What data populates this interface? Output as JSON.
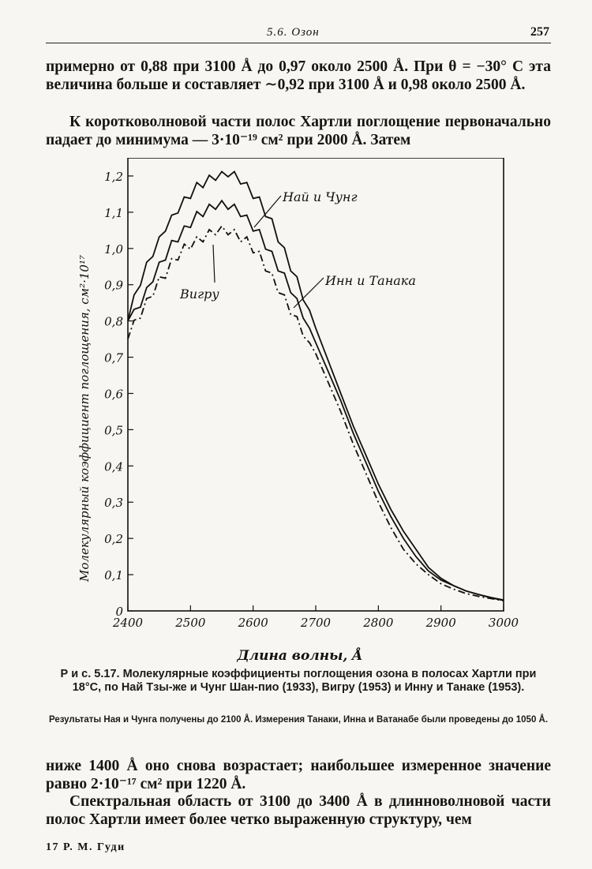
{
  "header": {
    "section": "5.6. Озон",
    "page_number": "257"
  },
  "paragraphs": {
    "p1": "примерно от 0,88 при 3100 Å до 0,97 около 2500 Å. При θ = −30° С эта величина больше и составляет ∼0,92 при 3100 Å и 0,98 около 2500 Å.",
    "p2": "К коротковолновой части полос Хартли поглощение первоначально падает до минимума — 3·10⁻¹⁹ см² при 2000 Å. Затем",
    "p3": "ниже 1400 Å оно снова возрастает; наибольшее измеренное значение равно 2·10⁻¹⁷ см² при 1220 Å.",
    "p4": "Спектральная область от 3100 до 3400 Å в длинноволновой части полос Хартли имеет более четко выраженную структуру, чем"
  },
  "chart_data": {
    "type": "line",
    "xlabel": "Длина волны, Å",
    "ylabel": "Молекулярный коэффициент поглощения, см²·10¹⁷",
    "xlim": [
      2400,
      3000
    ],
    "ylim": [
      0,
      1.25
    ],
    "x_ticks": [
      "2400",
      "2500",
      "2600",
      "2700",
      "2800",
      "2900",
      "3000"
    ],
    "y_ticks": [
      "0",
      "0,1",
      "0,2",
      "0,3",
      "0,4",
      "0,5",
      "0,6",
      "0,7",
      "0,8",
      "0,9",
      "1,0",
      "1,1",
      "1,2"
    ],
    "grid": false,
    "series": [
      {
        "name": "Най и Чунг",
        "style": "solid",
        "x": [
          2400,
          2410,
          2420,
          2430,
          2440,
          2450,
          2460,
          2470,
          2480,
          2490,
          2500,
          2510,
          2520,
          2530,
          2540,
          2550,
          2560,
          2570,
          2580,
          2590,
          2600,
          2610,
          2620,
          2630,
          2640,
          2650,
          2660,
          2670,
          2680,
          2690,
          2700,
          2720,
          2740,
          2760,
          2780,
          2800,
          2820,
          2840,
          2860,
          2880,
          2900,
          2920,
          2940,
          2960,
          2980,
          3000
        ],
        "y": [
          0.8,
          0.86,
          0.91,
          0.95,
          0.99,
          1.02,
          1.06,
          1.08,
          1.11,
          1.13,
          1.15,
          1.17,
          1.18,
          1.19,
          1.2,
          1.2,
          1.21,
          1.2,
          1.19,
          1.17,
          1.15,
          1.13,
          1.1,
          1.07,
          1.03,
          0.99,
          0.95,
          0.91,
          0.87,
          0.83,
          0.78,
          0.69,
          0.6,
          0.51,
          0.43,
          0.35,
          0.28,
          0.22,
          0.17,
          0.12,
          0.09,
          0.07,
          0.055,
          0.045,
          0.037,
          0.03
        ]
      },
      {
        "name": "Инн и Танака",
        "style": "solid",
        "x": [
          2400,
          2410,
          2420,
          2430,
          2440,
          2450,
          2460,
          2470,
          2480,
          2490,
          2500,
          2510,
          2520,
          2530,
          2540,
          2550,
          2560,
          2570,
          2580,
          2590,
          2600,
          2610,
          2620,
          2630,
          2640,
          2650,
          2660,
          2670,
          2680,
          2690,
          2700,
          2720,
          2740,
          2760,
          2780,
          2800,
          2820,
          2840,
          2860,
          2880,
          2900,
          2920,
          2940,
          2960,
          2980,
          3000
        ],
        "y": [
          0.8,
          0.82,
          0.85,
          0.88,
          0.92,
          0.95,
          0.98,
          1.01,
          1.03,
          1.05,
          1.07,
          1.09,
          1.1,
          1.11,
          1.12,
          1.12,
          1.12,
          1.11,
          1.1,
          1.08,
          1.06,
          1.04,
          1.01,
          0.98,
          0.95,
          0.92,
          0.89,
          0.85,
          0.82,
          0.78,
          0.74,
          0.66,
          0.58,
          0.49,
          0.41,
          0.33,
          0.26,
          0.2,
          0.15,
          0.11,
          0.085,
          0.07,
          0.055,
          0.045,
          0.036,
          0.029
        ]
      },
      {
        "name": "Вигру",
        "style": "dash-dot",
        "x": [
          2400,
          2410,
          2420,
          2430,
          2440,
          2450,
          2460,
          2470,
          2480,
          2490,
          2500,
          2510,
          2520,
          2530,
          2540,
          2550,
          2560,
          2570,
          2580,
          2590,
          2600,
          2610,
          2620,
          2630,
          2640,
          2650,
          2660,
          2670,
          2680,
          2690,
          2700,
          2720,
          2740,
          2760,
          2780,
          2800,
          2820,
          2840,
          2860,
          2880,
          2900,
          2920,
          2940,
          2960,
          2980,
          3000
        ],
        "y": [
          0.75,
          0.79,
          0.82,
          0.85,
          0.88,
          0.91,
          0.93,
          0.96,
          0.98,
          1.0,
          1.01,
          1.02,
          1.03,
          1.04,
          1.05,
          1.05,
          1.05,
          1.04,
          1.03,
          1.02,
          1.0,
          0.98,
          0.95,
          0.92,
          0.89,
          0.86,
          0.83,
          0.8,
          0.77,
          0.74,
          0.71,
          0.63,
          0.55,
          0.46,
          0.38,
          0.3,
          0.23,
          0.17,
          0.13,
          0.1,
          0.075,
          0.06,
          0.048,
          0.04,
          0.034,
          0.028
        ]
      }
    ]
  },
  "caption": {
    "main": "Р и с. 5.17. Молекулярные коэффициенты поглощения озона в полосах Хартли при 18°С, по Най Тзы-же и Чунг Шан-пио (1933), Вигру (1953) и Инну и Танаке (1953).",
    "note": "Результаты Ная и Чунга получены до 2100 Å. Измерения Танаки, Инна и Ватанабе были проведены до 1050 Å."
  },
  "footer": "17 Р. М. Гуди"
}
